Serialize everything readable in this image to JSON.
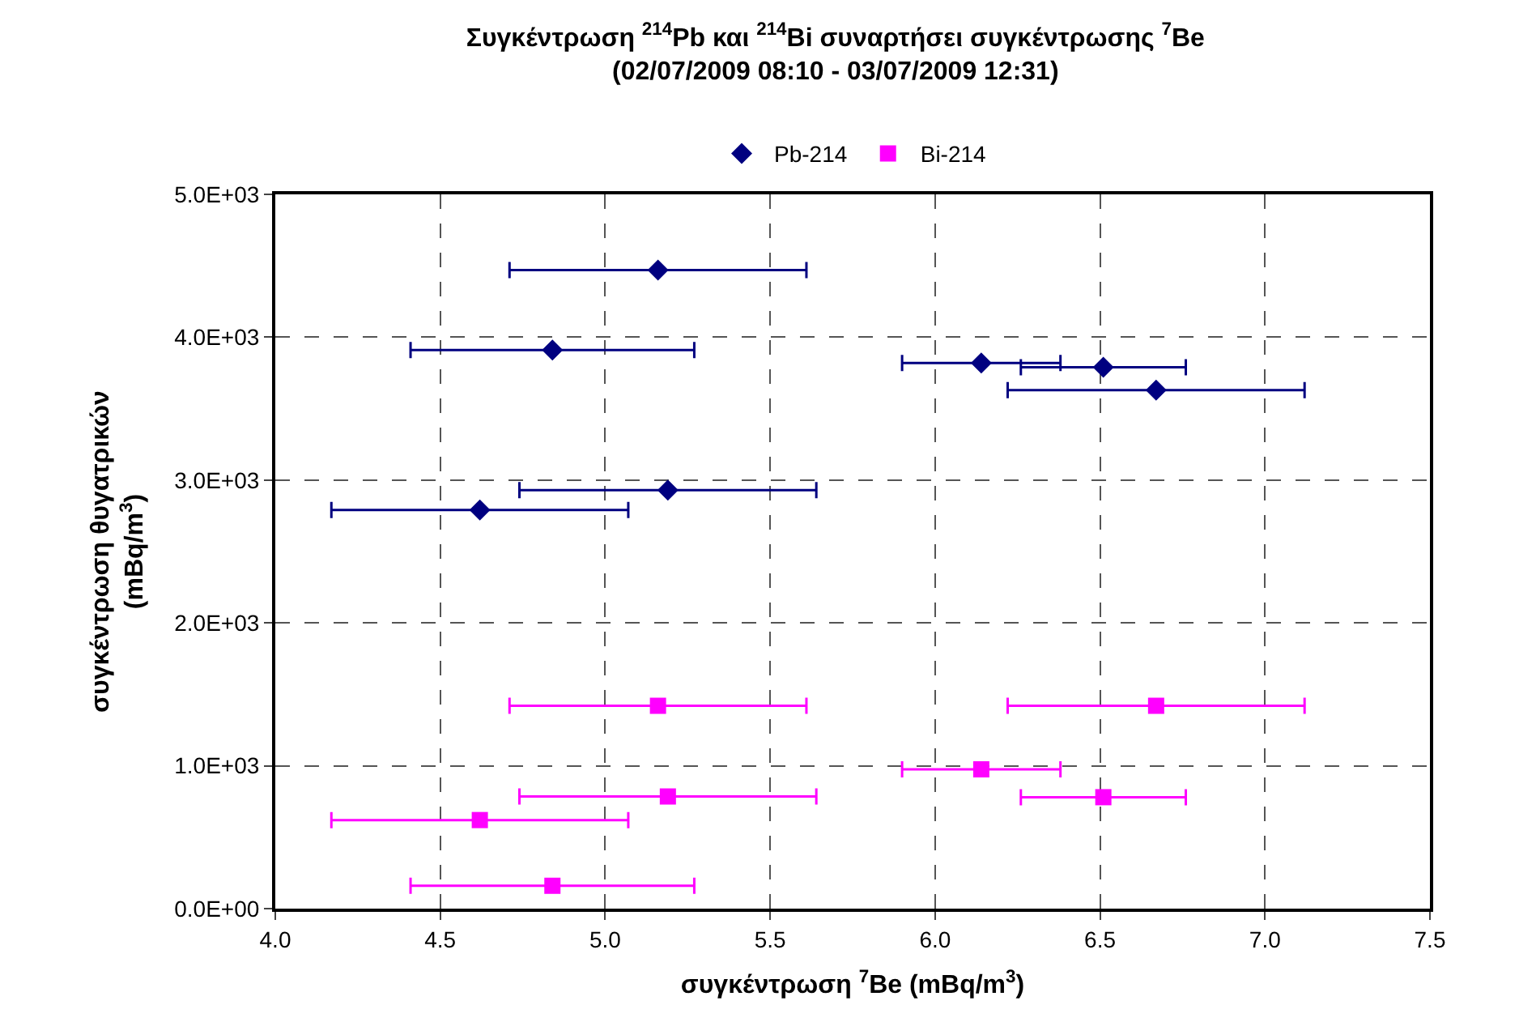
{
  "chart_data": {
    "type": "scatter",
    "title": "Συγκέντρωση $^{214}$Pb και $^{214}$Bi συναρτήσει συγκέντρωσης $^{7}$Be",
    "subtitle": "(02/07/2009 08:10 - 03/07/2009 12:31)",
    "xlabel": "συγκέντρωση $^{7}$Be (mBq/m$^{3}$)",
    "ylabel": "συγκέντρωση θυγατρικών\n(mBq/m$^{3}$)",
    "x": [
      5.16,
      4.84,
      5.19,
      4.62,
      6.14,
      6.51,
      6.67
    ],
    "series": [
      {
        "name": "Pb-214",
        "color": "#000080",
        "marker": "diamond",
        "values": [
          4470,
          3910,
          2930,
          2790,
          3820,
          3790,
          3630
        ],
        "xerrors": [
          0.45,
          0.43,
          0.45,
          0.45,
          0.24,
          0.25,
          0.45
        ]
      },
      {
        "name": "Bi-214",
        "color": "#ff00ff",
        "marker": "square",
        "values": [
          1420,
          160,
          785,
          620,
          975,
          780,
          1420
        ],
        "xerrors": [
          0.45,
          0.43,
          0.45,
          0.45,
          0.24,
          0.25,
          0.45
        ]
      }
    ],
    "xlim": [
      4.0,
      7.5
    ],
    "xticks": [
      {
        "value": 4.0,
        "label": "4.0"
      },
      {
        "value": 4.5,
        "label": "4.5"
      },
      {
        "value": 5.0,
        "label": "5.0"
      },
      {
        "value": 5.5,
        "label": "5.5"
      },
      {
        "value": 6.0,
        "label": "6.0"
      },
      {
        "value": 6.5,
        "label": "6.5"
      },
      {
        "value": 7.0,
        "label": "7.0"
      },
      {
        "value": 7.5,
        "label": "7.5"
      }
    ],
    "ylim": [
      0,
      5000
    ],
    "yticks": [
      {
        "value": 0,
        "label": "0.0E+00"
      },
      {
        "value": 1000,
        "label": "1.0E+03"
      },
      {
        "value": 2000,
        "label": "2.0E+03"
      },
      {
        "value": 3000,
        "label": "3.0E+03"
      },
      {
        "value": 4000,
        "label": "4.0E+03"
      },
      {
        "value": 5000,
        "label": "5.0E+03"
      }
    ],
    "grid": true,
    "legend": "top",
    "line_style": "dashed"
  }
}
